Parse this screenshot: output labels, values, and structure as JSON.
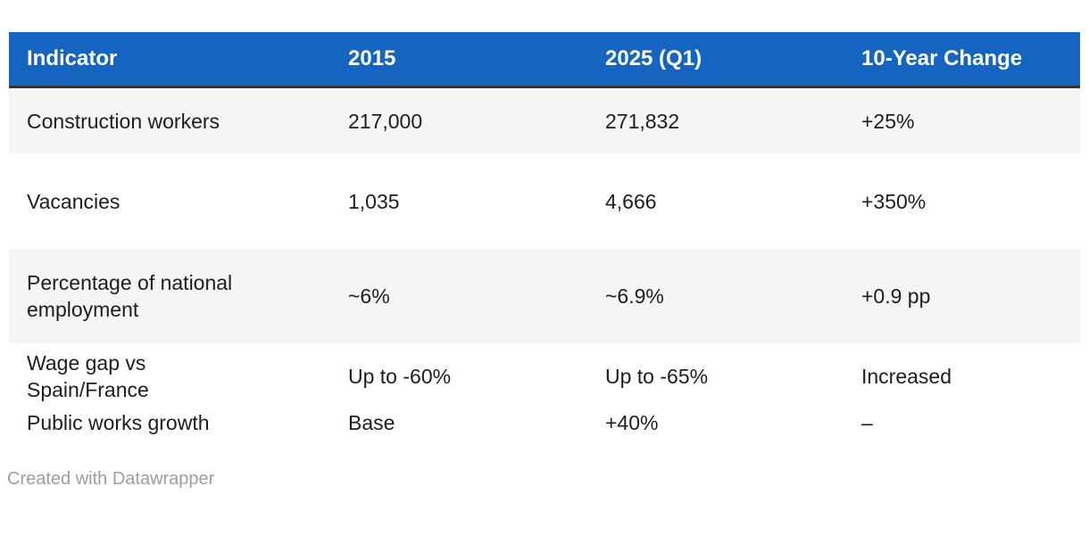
{
  "chart_data": {
    "type": "table",
    "columns": [
      "Indicator",
      "2015",
      "2025 (Q1)",
      "10-Year Change"
    ],
    "rows": [
      [
        "Construction workers",
        "217,000",
        "271,832",
        "+25%"
      ],
      [
        "Vacancies",
        "1,035",
        "4,666",
        "+350%"
      ],
      [
        "Percentage of national employment",
        "~6%",
        "~6.9%",
        "+0.9 pp"
      ],
      [
        "Wage gap vs Spain/France",
        "Up to -60%",
        "Up to -65%",
        "Increased"
      ],
      [
        "Public works growth",
        "Base",
        "+40%",
        "–"
      ]
    ],
    "zebra_striping": true,
    "header_position": "top"
  },
  "table": {
    "columns": [
      {
        "label": "Indicator"
      },
      {
        "label": "2015"
      },
      {
        "label": "2025 (Q1)"
      },
      {
        "label": "10-Year Change"
      }
    ],
    "rows": [
      {
        "indicator": "Construction workers",
        "y2015": "217,000",
        "y2025": "271,832",
        "change": "+25%"
      },
      {
        "indicator": "Vacancies",
        "y2015": "1,035",
        "y2025": "4,666",
        "change": "+350%"
      },
      {
        "indicator": "Percentage of national\nemployment",
        "y2015": "~6%",
        "y2025": "~6.9%",
        "change": "+0.9 pp"
      },
      {
        "indicator": "Wage gap vs\nSpain/France",
        "y2015": "Up to -60%",
        "y2025": "Up to -65%",
        "change": "Increased"
      },
      {
        "indicator": "Public works growth",
        "y2015": "Base",
        "y2025": "+40%",
        "change": "–"
      }
    ]
  },
  "footer": {
    "credit": "Created with Datawrapper"
  },
  "colors": {
    "header_bg": "#1565c0",
    "header_text": "#ffffff",
    "header_border": "#333333",
    "zebra_row_bg": "#f5f5f5",
    "body_text": "#1d1d1d",
    "credit_text": "#9e9e9e"
  }
}
